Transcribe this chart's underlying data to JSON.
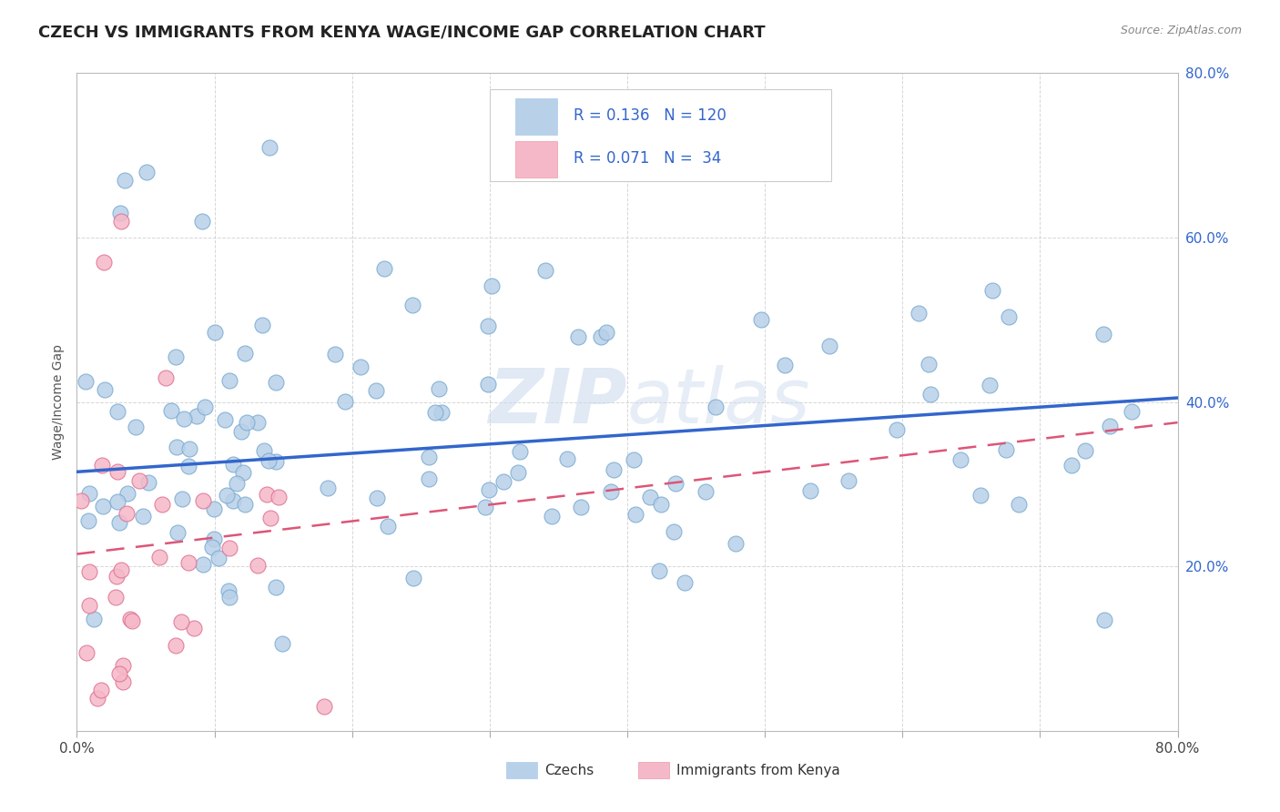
{
  "title": "CZECH VS IMMIGRANTS FROM KENYA WAGE/INCOME GAP CORRELATION CHART",
  "source": "Source: ZipAtlas.com",
  "ylabel": "Wage/Income Gap",
  "watermark": "ZIPatlas",
  "xmin": 0.0,
  "xmax": 0.8,
  "ymin": 0.0,
  "ymax": 0.8,
  "ytick_vals": [
    0.2,
    0.4,
    0.6,
    0.8
  ],
  "xtick_minor": [
    0.0,
    0.1,
    0.2,
    0.3,
    0.4,
    0.5,
    0.6,
    0.7,
    0.8
  ],
  "series1_color": "#b8d0e8",
  "series1_edge": "#7aaad0",
  "series2_color": "#f5b8c8",
  "series2_edge": "#e07090",
  "trendline1_color": "#3366cc",
  "trendline2_color": "#dd5577",
  "R1": 0.136,
  "N1": 120,
  "R2": 0.071,
  "N2": 34,
  "legend_label1": "Czechs",
  "legend_label2": "Immigrants from Kenya",
  "background_color": "#ffffff",
  "grid_color": "#cccccc",
  "title_fontsize": 13,
  "axis_label_fontsize": 10,
  "tick_fontsize": 11,
  "watermark_color": "#c8d8ec",
  "watermark_alpha": 0.6,
  "trendline1_start_y": 0.315,
  "trendline1_end_y": 0.405,
  "trendline2_start_y": 0.215,
  "trendline2_end_y": 0.375
}
